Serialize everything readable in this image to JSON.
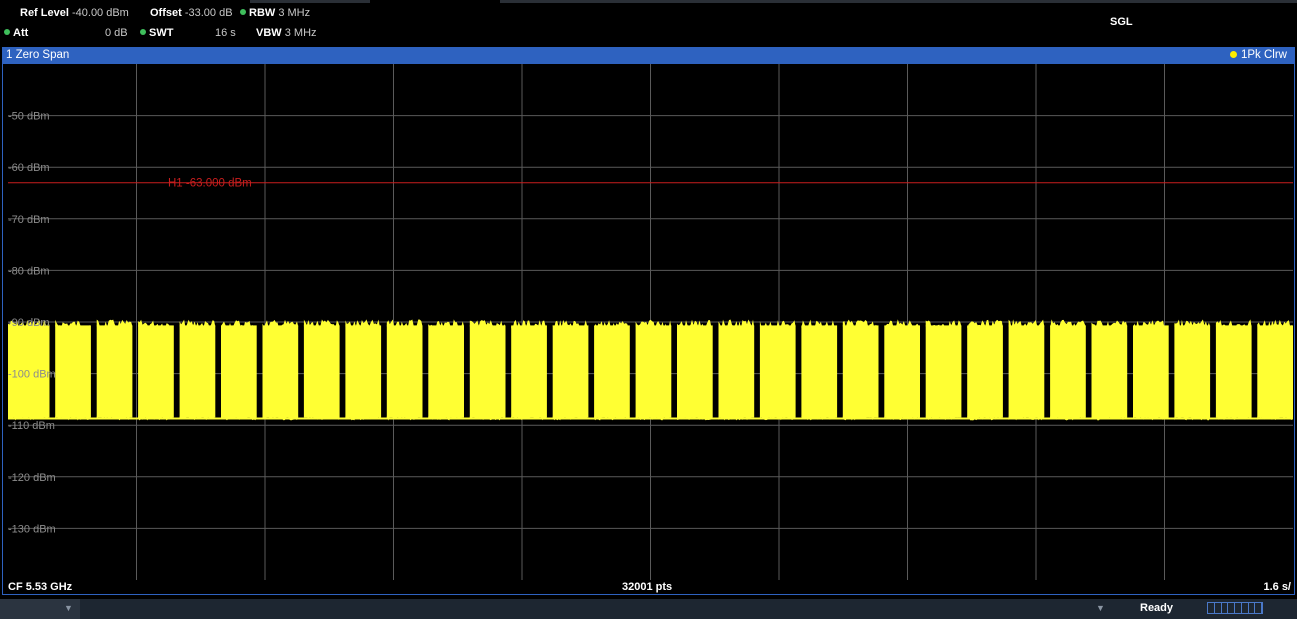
{
  "header": {
    "ref_level_label": "Ref Level",
    "ref_level_value": "-40.00 dBm",
    "offset_label": "Offset",
    "offset_value": "-33.00 dB",
    "rbw_label": "RBW",
    "rbw_value": "3 MHz",
    "att_label": "Att",
    "att_value": "0 dB",
    "swt_label": "SWT",
    "swt_value": "16 s",
    "vbw_label": "VBW",
    "vbw_value": "3 MHz",
    "mode": "SGL"
  },
  "window": {
    "title": "1 Zero Span",
    "trace_label": "1Pk Clrw"
  },
  "chart_data": {
    "type": "line",
    "ylabel_unit": "dBm",
    "y_ticks": [
      "-50 dBm",
      "-60 dBm",
      "-70 dBm",
      "-80 dBm",
      "-90 dBm",
      "-100 dBm",
      "-110 dBm",
      "-120 dBm",
      "-130 dBm"
    ],
    "y_tick_values": [
      -50,
      -60,
      -70,
      -80,
      -90,
      -100,
      -110,
      -120,
      -130
    ],
    "ylim": [
      -40,
      -140
    ],
    "x_divisions": 10,
    "grid": true,
    "hline": {
      "label": "H1 -63.000 dBm",
      "value": -63.0,
      "color": "#c81e1e"
    },
    "trace": {
      "name": "1Pk Clrw",
      "color": "#ffff33",
      "floor_dbm": -108.5,
      "peak_dbm": -89.5,
      "burst_count": 31,
      "gap_positions": [
        0.02,
        0.049,
        0.096,
        0.155,
        0.219,
        0.285,
        0.35,
        0.415,
        0.48,
        0.547,
        0.611,
        0.676,
        0.741,
        0.806,
        0.871,
        0.936
      ]
    },
    "bottom_left": "CF 5.53 GHz",
    "bottom_center": "32001 pts",
    "bottom_right": "1.6 s/"
  },
  "status": {
    "text": "Ready"
  }
}
